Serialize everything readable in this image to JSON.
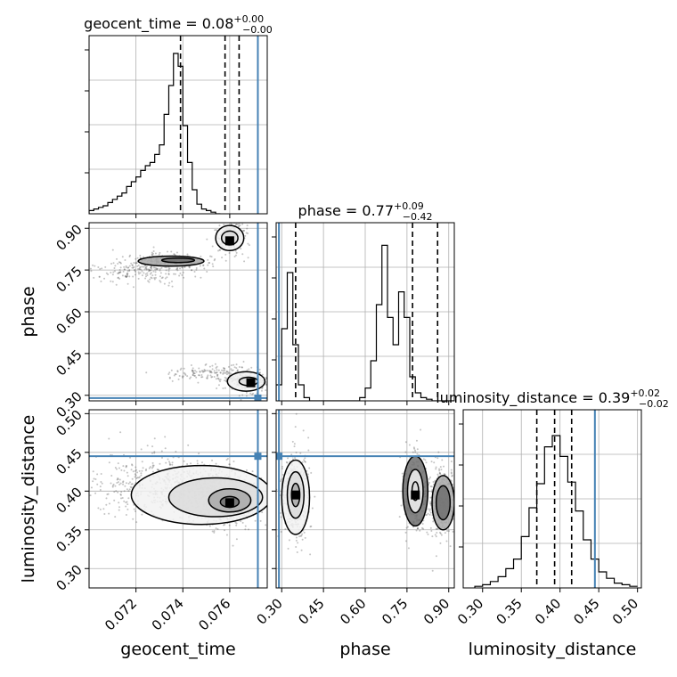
{
  "chart_data": {
    "type": "corner",
    "parameters": [
      {
        "name": "geocent_time",
        "label": "geocent_time",
        "title_prefix": "geocent_time = ",
        "median": "0.08",
        "plus": "+0.00",
        "minus": "−0.00",
        "range": [
          0.07,
          0.0776
        ],
        "ticks": [
          "0.072",
          "0.074",
          "0.076"
        ],
        "tick_values": [
          0.072,
          0.074,
          0.076
        ],
        "quantiles": [
          0.0739,
          0.0758,
          0.0764
        ],
        "truth": 0.0772
      },
      {
        "name": "phase",
        "label": "phase",
        "title_prefix": "phase = ",
        "median": "0.77",
        "plus": "+0.09",
        "minus": "−0.42",
        "range": [
          0.28,
          0.92
        ],
        "ticks": [
          "0.30",
          "0.45",
          "0.60",
          "0.75",
          "0.90"
        ],
        "tick_values": [
          0.3,
          0.45,
          0.6,
          0.75,
          0.9
        ],
        "quantiles": [
          0.35,
          0.77,
          0.86
        ],
        "truth": 0.29
      },
      {
        "name": "luminosity_distance",
        "label": "luminosity_distance",
        "title_prefix": "luminosity_distance = ",
        "median": "0.39",
        "plus": "+0.02",
        "minus": "−0.02",
        "range": [
          0.275,
          0.505
        ],
        "ticks": [
          "0.30",
          "0.35",
          "0.40",
          "0.45",
          "0.50"
        ],
        "tick_values": [
          0.3,
          0.35,
          0.4,
          0.45,
          0.5
        ],
        "quantiles": [
          0.37,
          0.393,
          0.415
        ],
        "truth": 0.445
      }
    ],
    "truth_color": "#4682b4",
    "grid": true,
    "histograms": [
      {
        "param": "geocent_time",
        "x_start": 0.07,
        "bin_width": 0.0002,
        "counts": [
          0.02,
          0.03,
          0.04,
          0.05,
          0.07,
          0.09,
          0.11,
          0.13,
          0.17,
          0.2,
          0.23,
          0.27,
          0.3,
          0.32,
          0.37,
          0.43,
          0.62,
          0.8,
          1.0,
          0.92,
          0.55,
          0.32,
          0.15,
          0.06,
          0.03,
          0.02,
          0.01,
          0.0
        ]
      },
      {
        "param": "phase",
        "x_start": 0.28,
        "bin_width": 0.02,
        "counts": [
          0.1,
          0.45,
          0.8,
          0.35,
          0.1,
          0.02,
          0.0,
          0.0,
          0.0,
          0.0,
          0.0,
          0.0,
          0.0,
          0.0,
          0.0,
          0.02,
          0.08,
          0.25,
          0.6,
          0.97,
          0.52,
          0.35,
          0.68,
          0.52,
          0.15,
          0.05,
          0.02,
          0.01,
          0.0,
          0.0,
          0.0,
          0.0
        ]
      },
      {
        "param": "luminosity_distance",
        "x_start": 0.29,
        "bin_width": 0.01,
        "counts": [
          0.01,
          0.02,
          0.04,
          0.07,
          0.12,
          0.18,
          0.32,
          0.5,
          0.65,
          0.88,
          0.95,
          0.82,
          0.66,
          0.48,
          0.3,
          0.18,
          0.1,
          0.06,
          0.03,
          0.02,
          0.01
        ]
      }
    ],
    "blobs_2d": [
      {
        "pair": [
          "geocent_time",
          "phase"
        ],
        "clusters": [
          {
            "cx": 0.076,
            "cy": 0.87,
            "sx": 0.00035,
            "sy": 0.03,
            "n": 220
          },
          {
            "cx": 0.0735,
            "cy": 0.78,
            "sx": 0.0009,
            "sy": 0.015,
            "n": 260
          },
          {
            "cx": 0.072,
            "cy": 0.74,
            "sx": 0.0012,
            "sy": 0.02,
            "n": 180
          },
          {
            "cx": 0.0768,
            "cy": 0.35,
            "sx": 0.0005,
            "sy": 0.02,
            "n": 280
          },
          {
            "cx": 0.075,
            "cy": 0.38,
            "sx": 0.001,
            "sy": 0.015,
            "n": 140
          }
        ]
      },
      {
        "pair": [
          "geocent_time",
          "luminosity_distance"
        ],
        "clusters": [
          {
            "cx": 0.0758,
            "cy": 0.39,
            "sx": 0.0006,
            "sy": 0.02,
            "n": 500
          },
          {
            "cx": 0.074,
            "cy": 0.405,
            "sx": 0.001,
            "sy": 0.018,
            "n": 360
          },
          {
            "cx": 0.072,
            "cy": 0.41,
            "sx": 0.0014,
            "sy": 0.022,
            "n": 220
          }
        ]
      },
      {
        "pair": [
          "phase",
          "luminosity_distance"
        ],
        "clusters": [
          {
            "cx": 0.35,
            "cy": 0.395,
            "sx": 0.025,
            "sy": 0.028,
            "n": 420
          },
          {
            "cx": 0.78,
            "cy": 0.4,
            "sx": 0.022,
            "sy": 0.025,
            "n": 320
          },
          {
            "cx": 0.87,
            "cy": 0.385,
            "sx": 0.025,
            "sy": 0.022,
            "n": 300
          }
        ]
      }
    ],
    "contours_2d": [
      {
        "pair": [
          "geocent_time",
          "phase"
        ],
        "ellipses": [
          {
            "cx": 0.076,
            "cy": 0.865,
            "rx": 0.0006,
            "ry": 0.045
          },
          {
            "cx": 0.076,
            "cy": 0.865,
            "rx": 0.00035,
            "ry": 0.025
          },
          {
            "cx": 0.0735,
            "cy": 0.782,
            "rx": 0.0014,
            "ry": 0.018
          },
          {
            "cx": 0.0738,
            "cy": 0.785,
            "rx": 0.0007,
            "ry": 0.008
          },
          {
            "cx": 0.0767,
            "cy": 0.35,
            "rx": 0.0008,
            "ry": 0.035
          },
          {
            "cx": 0.0768,
            "cy": 0.35,
            "rx": 0.0004,
            "ry": 0.015
          }
        ],
        "peaks": [
          {
            "x": 0.076,
            "y": 0.855
          },
          {
            "x": 0.0769,
            "y": 0.345
          }
        ]
      },
      {
        "pair": [
          "geocent_time",
          "luminosity_distance"
        ],
        "ellipses": [
          {
            "cx": 0.0748,
            "cy": 0.395,
            "rx": 0.003,
            "ry": 0.038
          },
          {
            "cx": 0.0754,
            "cy": 0.392,
            "rx": 0.002,
            "ry": 0.025
          },
          {
            "cx": 0.076,
            "cy": 0.388,
            "rx": 0.0009,
            "ry": 0.015
          },
          {
            "cx": 0.076,
            "cy": 0.386,
            "rx": 0.0004,
            "ry": 0.007
          }
        ],
        "peaks": [
          {
            "x": 0.076,
            "y": 0.385
          }
        ]
      },
      {
        "pair": [
          "phase",
          "luminosity_distance"
        ],
        "ellipses": [
          {
            "cx": 0.35,
            "cy": 0.392,
            "rx": 0.05,
            "ry": 0.048
          },
          {
            "cx": 0.35,
            "cy": 0.395,
            "rx": 0.03,
            "ry": 0.03
          },
          {
            "cx": 0.35,
            "cy": 0.395,
            "rx": 0.015,
            "ry": 0.015
          },
          {
            "cx": 0.78,
            "cy": 0.4,
            "rx": 0.045,
            "ry": 0.045
          },
          {
            "cx": 0.78,
            "cy": 0.4,
            "rx": 0.028,
            "ry": 0.028
          },
          {
            "cx": 0.78,
            "cy": 0.4,
            "rx": 0.012,
            "ry": 0.012
          },
          {
            "cx": 0.88,
            "cy": 0.385,
            "rx": 0.04,
            "ry": 0.035
          },
          {
            "cx": 0.88,
            "cy": 0.385,
            "rx": 0.025,
            "ry": 0.022
          }
        ],
        "peaks": [
          {
            "x": 0.35,
            "y": 0.395
          },
          {
            "x": 0.78,
            "y": 0.395
          }
        ]
      }
    ]
  }
}
